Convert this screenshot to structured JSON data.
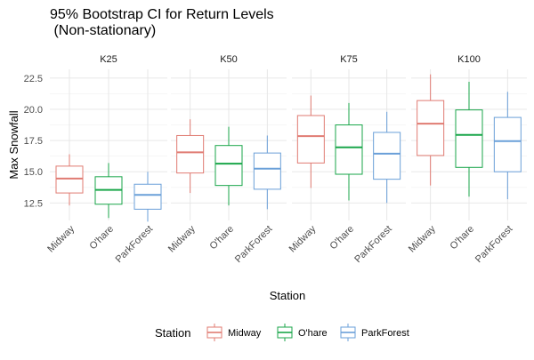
{
  "chart_data": {
    "type": "boxplot",
    "title_line1": "95% Bootstrap CI for Return Levels",
    "title_line2": " (Non-stationary)",
    "xlabel": "Station",
    "ylabel": "Max Snowfall",
    "legend_title": "Station",
    "legend_position": "bottom",
    "grid": true,
    "ylim": [
      11.1,
      23.2
    ],
    "yticks": [
      12.5,
      15.0,
      17.5,
      20.0,
      22.5
    ],
    "ytick_labels": [
      "12.5",
      "15.0",
      "17.5",
      "20.0",
      "22.5"
    ],
    "series": [
      {
        "name": "Midway",
        "color": "#e07b72"
      },
      {
        "name": "O'hare",
        "color": "#1aa64a"
      },
      {
        "name": "ParkForest",
        "color": "#6a9fd8"
      }
    ],
    "categories": [
      "Midway",
      "O'hare",
      "ParkForest"
    ],
    "panels": [
      {
        "label": "K25",
        "boxes": [
          {
            "min": 12.3,
            "q1": 13.3,
            "median": 14.45,
            "q3": 15.45,
            "max": 16.4
          },
          {
            "min": 11.3,
            "q1": 12.4,
            "median": 13.55,
            "q3": 14.6,
            "max": 15.7
          },
          {
            "min": 11.0,
            "q1": 12.0,
            "median": 13.15,
            "q3": 14.0,
            "max": 15.0
          }
        ]
      },
      {
        "label": "K50",
        "boxes": [
          {
            "min": 13.3,
            "q1": 14.9,
            "median": 16.55,
            "q3": 17.9,
            "max": 19.2
          },
          {
            "min": 12.3,
            "q1": 13.9,
            "median": 15.65,
            "q3": 17.1,
            "max": 18.6
          },
          {
            "min": 12.0,
            "q1": 13.6,
            "median": 15.25,
            "q3": 16.5,
            "max": 17.9
          }
        ]
      },
      {
        "label": "K75",
        "boxes": [
          {
            "min": 13.7,
            "q1": 15.7,
            "median": 17.85,
            "q3": 19.5,
            "max": 21.1
          },
          {
            "min": 12.7,
            "q1": 14.8,
            "median": 16.95,
            "q3": 18.75,
            "max": 20.5
          },
          {
            "min": 12.5,
            "q1": 14.4,
            "median": 16.45,
            "q3": 18.15,
            "max": 19.8
          }
        ]
      },
      {
        "label": "K100",
        "boxes": [
          {
            "min": 13.9,
            "q1": 16.3,
            "median": 18.85,
            "q3": 20.7,
            "max": 22.8
          },
          {
            "min": 13.0,
            "q1": 15.35,
            "median": 17.95,
            "q3": 19.95,
            "max": 22.2
          },
          {
            "min": 12.8,
            "q1": 15.0,
            "median": 17.45,
            "q3": 19.35,
            "max": 21.4
          }
        ]
      }
    ]
  }
}
